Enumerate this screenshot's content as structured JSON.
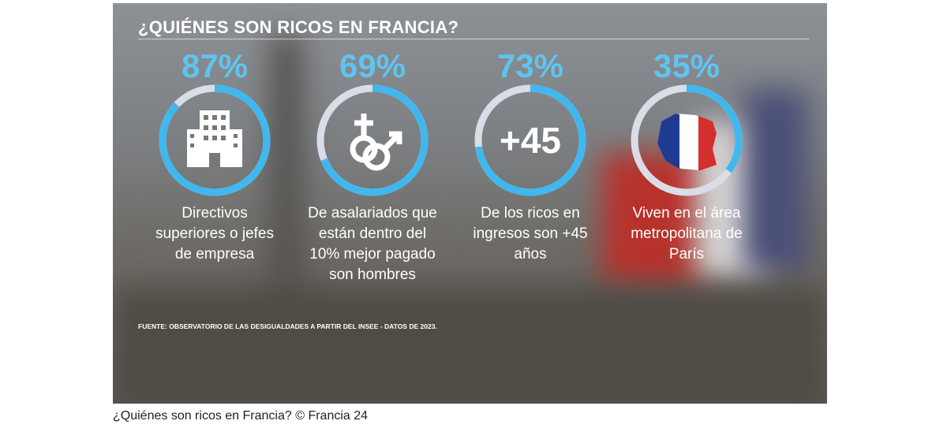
{
  "chart_data": {
    "type": "ring",
    "title": "¿QUIÉNES SON RICOS EN FRANCIA?",
    "values": [
      87,
      69,
      73,
      35
    ],
    "value_labels": [
      "87%",
      "69%",
      "73%",
      "35%"
    ],
    "categories": [
      "Directivos superiores o jefes de empresa",
      "De asalariados que están dentro del 10% mejor pagado son hombres",
      "De los ricos en ingresos son +45 años",
      "Viven en el área metropolitana de París"
    ],
    "badge": "+45",
    "color": "#40b8ee",
    "track_color": "#d9dde6",
    "ylim": [
      0,
      100
    ],
    "source": "FUENTE: OBSERVATORIO DE LAS DESIGUALDADES A PARTIR DEL INSEE - DATOS DE 2023."
  },
  "caption": "¿Quiénes son ricos en Francia? © Francia 24"
}
